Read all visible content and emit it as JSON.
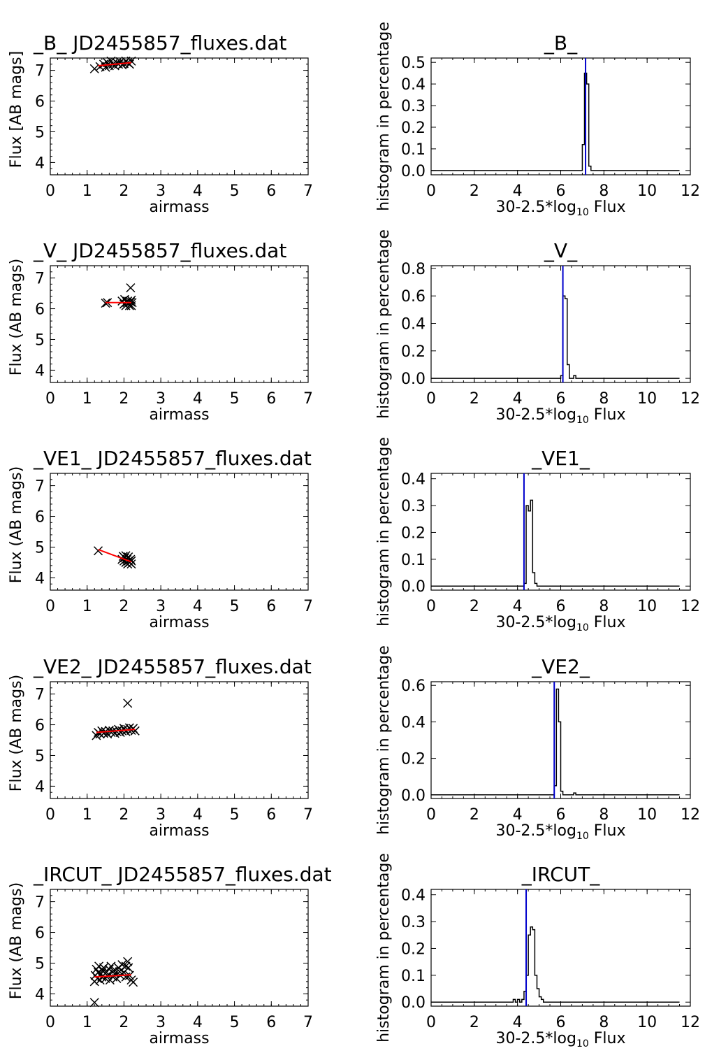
{
  "layout_rows": 5,
  "scatter_common": {
    "xlabel": "airmass",
    "xlim": [
      0,
      7
    ],
    "ylim": [
      3.6,
      7.4
    ],
    "xticks": [
      "0",
      "1",
      "2",
      "3",
      "4",
      "5",
      "6",
      "7"
    ],
    "yticks": [
      "4",
      "5",
      "6",
      "7"
    ],
    "marker": "x",
    "fit_color": "#ff0000"
  },
  "hist_common": {
    "ylabel": "histogram in percentage",
    "xlabel_main": "30-2.5*log",
    "xlabel_sub": "10",
    "xlabel_tail": " Flux",
    "xlim": [
      0,
      12
    ],
    "xticks": [
      "0",
      "2",
      "4",
      "6",
      "8",
      "10",
      "12"
    ],
    "line_color": "#0000cc"
  },
  "chart_data": [
    {
      "type": "scatter",
      "title": "_B_   JD2455857_fluxes.dat",
      "ylabel": "Flux [AB mags]",
      "points": [
        [
          1.2,
          7.05
        ],
        [
          1.35,
          7.12
        ],
        [
          1.45,
          7.2
        ],
        [
          1.5,
          7.1
        ],
        [
          1.55,
          7.25
        ],
        [
          1.6,
          7.15
        ],
        [
          1.65,
          7.3
        ],
        [
          1.7,
          7.2
        ],
        [
          1.75,
          7.15
        ],
        [
          1.8,
          7.25
        ],
        [
          1.85,
          7.2
        ],
        [
          1.9,
          7.28
        ],
        [
          1.95,
          7.18
        ],
        [
          2.0,
          7.22
        ],
        [
          2.05,
          7.3
        ],
        [
          2.1,
          7.25
        ],
        [
          2.15,
          7.2
        ],
        [
          2.2,
          7.3
        ]
      ],
      "fit": [
        [
          1.3,
          7.15
        ],
        [
          2.2,
          7.25
        ]
      ]
    },
    {
      "type": "scatter",
      "title": "_V_   JD2455857_fluxes.dat",
      "ylabel": "Flux (AB mags)",
      "points": [
        [
          1.5,
          6.18
        ],
        [
          1.55,
          6.2
        ],
        [
          1.95,
          6.25
        ],
        [
          2.0,
          6.15
        ],
        [
          2.02,
          6.3
        ],
        [
          2.05,
          6.1
        ],
        [
          2.08,
          6.2
        ],
        [
          2.1,
          6.25
        ],
        [
          2.12,
          6.18
        ],
        [
          2.15,
          6.1
        ],
        [
          2.18,
          6.22
        ],
        [
          2.2,
          6.28
        ],
        [
          2.2,
          6.1
        ],
        [
          2.22,
          6.2
        ],
        [
          2.18,
          6.68
        ]
      ],
      "fit": [
        [
          1.5,
          6.2
        ],
        [
          2.2,
          6.2
        ]
      ]
    },
    {
      "type": "scatter",
      "title": "_VE1_   JD2455857_fluxes.dat",
      "ylabel": "Flux (AB mags)",
      "points": [
        [
          1.3,
          4.88
        ],
        [
          1.95,
          4.6
        ],
        [
          1.98,
          4.7
        ],
        [
          2.0,
          4.55
        ],
        [
          2.02,
          4.65
        ],
        [
          2.05,
          4.5
        ],
        [
          2.05,
          4.72
        ],
        [
          2.08,
          4.6
        ],
        [
          2.1,
          4.45
        ],
        [
          2.12,
          4.55
        ],
        [
          2.12,
          4.68
        ],
        [
          2.15,
          4.5
        ],
        [
          2.18,
          4.6
        ],
        [
          2.2,
          4.45
        ],
        [
          2.2,
          4.55
        ]
      ],
      "fit": [
        [
          1.3,
          4.92
        ],
        [
          2.2,
          4.52
        ]
      ]
    },
    {
      "type": "scatter",
      "title": "_VE2_   JD2455857_fluxes.dat",
      "ylabel": "Flux (AB mags)",
      "points": [
        [
          1.25,
          5.65
        ],
        [
          1.3,
          5.75
        ],
        [
          1.35,
          5.7
        ],
        [
          1.4,
          5.8
        ],
        [
          1.45,
          5.72
        ],
        [
          1.5,
          5.78
        ],
        [
          1.55,
          5.7
        ],
        [
          1.6,
          5.82
        ],
        [
          1.65,
          5.75
        ],
        [
          1.7,
          5.8
        ],
        [
          1.75,
          5.72
        ],
        [
          1.8,
          5.78
        ],
        [
          1.85,
          5.85
        ],
        [
          1.9,
          5.75
        ],
        [
          1.95,
          5.8
        ],
        [
          2.0,
          5.88
        ],
        [
          2.05,
          5.78
        ],
        [
          2.1,
          5.85
        ],
        [
          2.15,
          5.9
        ],
        [
          2.2,
          5.82
        ],
        [
          2.25,
          5.88
        ],
        [
          2.3,
          5.8
        ],
        [
          2.1,
          6.7
        ]
      ],
      "fit": [
        [
          1.25,
          5.75
        ],
        [
          2.3,
          5.85
        ]
      ]
    },
    {
      "type": "scatter",
      "title": "_IRCUT_   JD2455857_fluxes.dat",
      "ylabel": "Flux (AB mags)",
      "points": [
        [
          1.2,
          3.72
        ],
        [
          1.2,
          4.4
        ],
        [
          1.22,
          4.6
        ],
        [
          1.25,
          4.8
        ],
        [
          1.28,
          4.5
        ],
        [
          1.3,
          4.7
        ],
        [
          1.32,
          4.9
        ],
        [
          1.35,
          4.45
        ],
        [
          1.38,
          4.65
        ],
        [
          1.4,
          4.55
        ],
        [
          1.42,
          4.75
        ],
        [
          1.45,
          4.85
        ],
        [
          1.5,
          4.5
        ],
        [
          1.52,
          4.7
        ],
        [
          1.55,
          4.6
        ],
        [
          1.6,
          4.8
        ],
        [
          1.62,
          4.45
        ],
        [
          1.65,
          4.9
        ],
        [
          1.7,
          4.55
        ],
        [
          1.72,
          4.75
        ],
        [
          1.75,
          4.65
        ],
        [
          1.8,
          4.5
        ],
        [
          1.85,
          4.85
        ],
        [
          1.9,
          4.6
        ],
        [
          1.95,
          4.95
        ],
        [
          2.0,
          4.7
        ],
        [
          2.05,
          4.55
        ],
        [
          2.1,
          5.05
        ],
        [
          2.12,
          4.85
        ],
        [
          2.15,
          4.6
        ],
        [
          2.2,
          4.45
        ],
        [
          2.25,
          4.38
        ],
        [
          2.05,
          4.9
        ],
        [
          1.88,
          4.72
        ]
      ],
      "fit": [
        [
          1.2,
          4.55
        ],
        [
          2.2,
          4.62
        ]
      ]
    }
  ],
  "hist_data": [
    {
      "type": "histogram",
      "title": "_B_",
      "ylim": [
        -0.02,
        0.52
      ],
      "yticks": [
        "0.0",
        "0.1",
        "0.2",
        "0.3",
        "0.4",
        "0.5"
      ],
      "yvals": [
        0.0,
        0.1,
        0.2,
        0.3,
        0.4,
        0.5
      ],
      "bin_width": 0.1,
      "hist_range": [
        0,
        11.5
      ],
      "bins": [
        [
          7.0,
          0.12
        ],
        [
          7.1,
          0.45
        ],
        [
          7.2,
          0.4
        ],
        [
          7.3,
          0.02
        ]
      ],
      "vline": 7.15
    },
    {
      "type": "histogram",
      "title": "_V_",
      "ylim": [
        -0.03,
        0.82
      ],
      "yticks": [
        "0.0",
        "0.2",
        "0.4",
        "0.6",
        "0.8"
      ],
      "yvals": [
        0.0,
        0.2,
        0.4,
        0.6,
        0.8
      ],
      "bin_width": 0.1,
      "hist_range": [
        0,
        11.5
      ],
      "bins": [
        [
          6.0,
          0.02
        ],
        [
          6.1,
          0.6
        ],
        [
          6.2,
          0.58
        ],
        [
          6.3,
          0.1
        ],
        [
          6.6,
          0.02
        ]
      ],
      "vline": 6.1
    },
    {
      "type": "histogram",
      "title": "_VE1_",
      "ylim": [
        -0.015,
        0.42
      ],
      "yticks": [
        "0.0",
        "0.1",
        "0.2",
        "0.3",
        "0.4"
      ],
      "yvals": [
        0.0,
        0.1,
        0.2,
        0.3,
        0.4
      ],
      "bin_width": 0.1,
      "hist_range": [
        0,
        11.5
      ],
      "bins": [
        [
          4.3,
          0.01
        ],
        [
          4.4,
          0.3
        ],
        [
          4.5,
          0.28
        ],
        [
          4.6,
          0.32
        ],
        [
          4.7,
          0.05
        ],
        [
          4.8,
          0.01
        ]
      ],
      "vline": 4.3
    },
    {
      "type": "histogram",
      "title": "_VE2_",
      "ylim": [
        -0.02,
        0.62
      ],
      "yticks": [
        "0.0",
        "0.2",
        "0.4",
        "0.6"
      ],
      "yvals": [
        0.0,
        0.2,
        0.4,
        0.6
      ],
      "bin_width": 0.1,
      "hist_range": [
        0,
        11.5
      ],
      "bins": [
        [
          5.7,
          0.05
        ],
        [
          5.8,
          0.58
        ],
        [
          5.9,
          0.4
        ],
        [
          6.0,
          0.02
        ],
        [
          6.6,
          0.01
        ]
      ],
      "vline": 5.7
    },
    {
      "type": "histogram",
      "title": "_IRCUT_",
      "ylim": [
        -0.015,
        0.42
      ],
      "yticks": [
        "0.0",
        "0.1",
        "0.2",
        "0.3",
        "0.4"
      ],
      "yvals": [
        0.0,
        0.1,
        0.2,
        0.3,
        0.4
      ],
      "bin_width": 0.1,
      "hist_range": [
        0,
        11.5
      ],
      "bins": [
        [
          3.8,
          0.01
        ],
        [
          4.0,
          0.01
        ],
        [
          4.2,
          0.01
        ],
        [
          4.3,
          0.04
        ],
        [
          4.4,
          0.1
        ],
        [
          4.5,
          0.25
        ],
        [
          4.6,
          0.28
        ],
        [
          4.7,
          0.27
        ],
        [
          4.8,
          0.1
        ],
        [
          4.9,
          0.05
        ],
        [
          5.0,
          0.02
        ],
        [
          5.1,
          0.01
        ]
      ],
      "vline": 4.4
    }
  ]
}
